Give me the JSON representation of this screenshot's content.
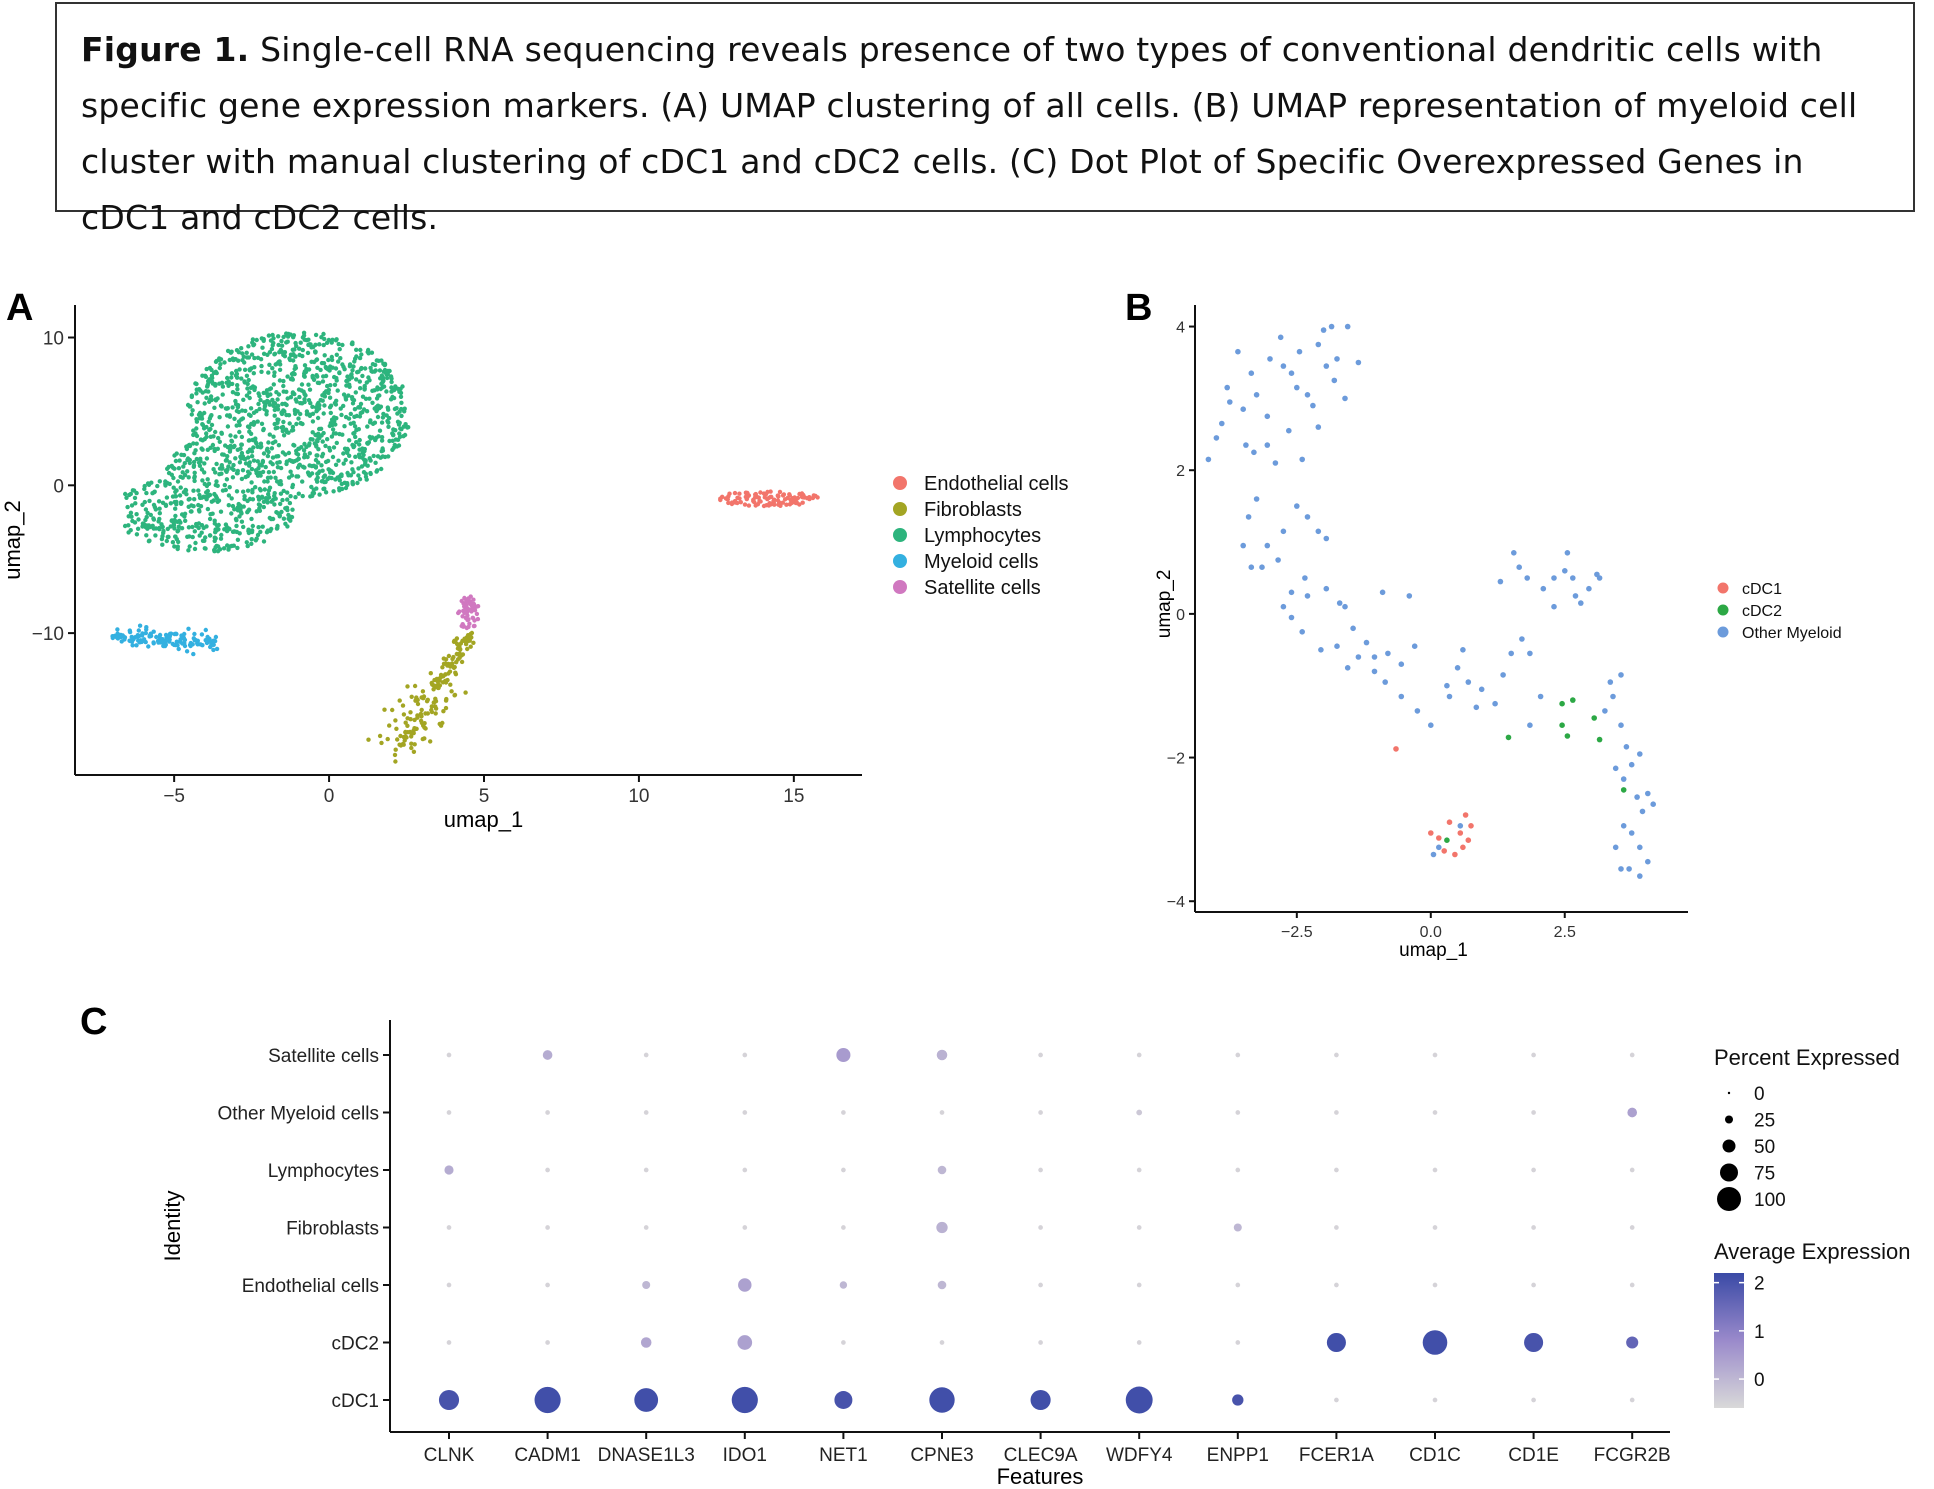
{
  "caption": {
    "label": "Figure 1.",
    "text": "Single-cell RNA sequencing reveals presence of two types of conventional dendritic cells with specific gene expression markers. (A) UMAP clustering of all cells. (B) UMAP representation of myeloid cell cluster with manual clustering of cDC1 and cDC2 cells. (C) Dot Plot of Specific Overexpressed Genes in cDC1 and cDC2 cells."
  },
  "panels": {
    "a": {
      "letter": "A"
    },
    "b": {
      "letter": "B"
    },
    "c": {
      "letter": "C"
    }
  },
  "colors": {
    "endothelial": "#F2756B",
    "fibroblasts": "#A3A523",
    "lymphocytes": "#2DB47D",
    "myeloid": "#33B0E0",
    "satellite": "#D078C0",
    "cdc1": "#F2756B",
    "cdc2": "#2CA845",
    "other_myeloid": "#6C9BDB",
    "expr_low": "#D9D9D9",
    "expr_high": "#3A4AA6"
  },
  "chart_data": [
    {
      "panel": "A",
      "type": "scatter",
      "xlabel": "umap_1",
      "ylabel": "umap_2",
      "xlim": [
        -8.2,
        17.2
      ],
      "ylim": [
        -19.6,
        12.2
      ],
      "xticks": [
        -5,
        0,
        5,
        10,
        15
      ],
      "xtick_labels": [
        "−5",
        "0",
        "5",
        "10",
        "15"
      ],
      "yticks": [
        10,
        0,
        -10
      ],
      "ytick_labels": [
        "10",
        "0",
        "−10"
      ],
      "legend": [
        "Endothelial cells",
        "Fibroblasts",
        "Lymphocytes",
        "Myeloid cells",
        "Satellite cells"
      ],
      "legend_colors": [
        "#F2756B",
        "#A3A523",
        "#2DB47D",
        "#33B0E0",
        "#D078C0"
      ],
      "clusters": [
        {
          "name": "Lymphocytes",
          "n": 1500,
          "shape": "blob",
          "x_range": [
            -6.6,
            2.6
          ],
          "y_range": [
            -4.8,
            10.6
          ]
        },
        {
          "name": "Endothelial cells",
          "n": 110,
          "shape": "ellipse",
          "center": [
            14.2,
            -0.9
          ],
          "radius": [
            1.6,
            0.55
          ]
        },
        {
          "name": "Myeloid cells",
          "n": 130,
          "shape": "band",
          "x_range": [
            -7.0,
            -3.6
          ],
          "y_range": [
            -11.0,
            -9.6
          ]
        },
        {
          "name": "Fibroblasts",
          "n": 190,
          "shape": "line",
          "from": [
            2.2,
            -17.8
          ],
          "to": [
            4.5,
            -10.2
          ]
        },
        {
          "name": "Satellite cells",
          "n": 60,
          "shape": "ellipse",
          "center": [
            4.5,
            -8.7
          ],
          "radius": [
            0.35,
            1.2
          ]
        }
      ]
    },
    {
      "panel": "B",
      "type": "scatter",
      "xlabel": "umap_1",
      "ylabel": "umap_2",
      "xlim": [
        -4.4,
        4.8
      ],
      "ylim": [
        -4.15,
        4.3
      ],
      "xticks": [
        -2.5,
        0.0,
        2.5
      ],
      "xtick_labels": [
        "−2.5",
        "0.0",
        "2.5"
      ],
      "yticks": [
        4,
        2,
        0,
        -2,
        -4
      ],
      "ytick_labels": [
        "4",
        "2",
        "0",
        "−2",
        "−4"
      ],
      "legend": [
        "cDC1",
        "cDC2",
        "Other Myeloid"
      ],
      "legend_colors": [
        "#F2756B",
        "#2CA845",
        "#6C9BDB"
      ],
      "series": [
        {
          "name": "cDC1",
          "points": [
            [
              -0.65,
              -1.88
            ],
            [
              0.0,
              -3.05
            ],
            [
              0.15,
              -3.12
            ],
            [
              0.25,
              -3.3
            ],
            [
              0.45,
              -3.35
            ],
            [
              0.55,
              -3.05
            ],
            [
              0.6,
              -3.25
            ],
            [
              0.65,
              -2.8
            ],
            [
              0.75,
              -2.95
            ],
            [
              0.7,
              -3.15
            ],
            [
              0.35,
              -2.9
            ]
          ]
        },
        {
          "name": "cDC2",
          "points": [
            [
              0.3,
              -3.15
            ],
            [
              1.45,
              -1.72
            ],
            [
              2.45,
              -1.25
            ],
            [
              2.65,
              -1.2
            ],
            [
              2.45,
              -1.55
            ],
            [
              2.55,
              -1.7
            ],
            [
              3.05,
              -1.45
            ],
            [
              3.15,
              -1.75
            ],
            [
              3.6,
              -2.45
            ]
          ]
        },
        {
          "name": "Other Myeloid",
          "points": [
            [
              -4.15,
              2.15
            ],
            [
              -4.0,
              2.45
            ],
            [
              -3.9,
              2.65
            ],
            [
              -3.8,
              3.15
            ],
            [
              -3.75,
              2.95
            ],
            [
              -3.6,
              3.65
            ],
            [
              -3.5,
              2.85
            ],
            [
              -3.45,
              2.35
            ],
            [
              -3.35,
              3.35
            ],
            [
              -3.3,
              2.25
            ],
            [
              -3.25,
              3.05
            ],
            [
              -3.05,
              2.75
            ],
            [
              -3.0,
              3.55
            ],
            [
              -2.8,
              3.85
            ],
            [
              -2.75,
              3.45
            ],
            [
              -2.6,
              3.35
            ],
            [
              -2.5,
              3.15
            ],
            [
              -2.45,
              3.65
            ],
            [
              -2.3,
              3.05
            ],
            [
              -2.1,
              3.75
            ],
            [
              -2.0,
              3.95
            ],
            [
              -1.95,
              3.45
            ],
            [
              -1.85,
              4.0
            ],
            [
              -1.8,
              3.25
            ],
            [
              -1.75,
              3.55
            ],
            [
              -1.6,
              3.0
            ],
            [
              -1.55,
              4.0
            ],
            [
              -1.35,
              3.5
            ],
            [
              -2.1,
              2.6
            ],
            [
              -2.2,
              2.9
            ],
            [
              -2.4,
              2.15
            ],
            [
              -2.65,
              2.55
            ],
            [
              -2.9,
              2.1
            ],
            [
              -3.05,
              2.35
            ],
            [
              -3.25,
              1.6
            ],
            [
              -3.4,
              1.35
            ],
            [
              -3.5,
              0.95
            ],
            [
              -3.35,
              0.65
            ],
            [
              -3.15,
              0.65
            ],
            [
              -3.05,
              0.95
            ],
            [
              -2.85,
              0.75
            ],
            [
              -2.75,
              1.15
            ],
            [
              -2.5,
              1.5
            ],
            [
              -2.3,
              1.35
            ],
            [
              -2.1,
              1.15
            ],
            [
              -1.95,
              1.05
            ],
            [
              -2.35,
              0.5
            ],
            [
              -2.6,
              0.3
            ],
            [
              -2.75,
              0.1
            ],
            [
              -2.3,
              0.25
            ],
            [
              -1.95,
              0.35
            ],
            [
              -1.7,
              0.15
            ],
            [
              -1.6,
              0.1
            ],
            [
              -1.45,
              -0.2
            ],
            [
              -1.2,
              -0.4
            ],
            [
              -1.05,
              -0.6
            ],
            [
              -0.8,
              -0.55
            ],
            [
              -0.55,
              -0.7
            ],
            [
              -0.3,
              -0.45
            ],
            [
              -0.25,
              -1.35
            ],
            [
              -0.55,
              -1.15
            ],
            [
              -0.85,
              -0.95
            ],
            [
              -1.05,
              -0.8
            ],
            [
              -1.35,
              -0.6
            ],
            [
              -1.55,
              -0.75
            ],
            [
              -1.75,
              -0.45
            ],
            [
              -2.05,
              -0.5
            ],
            [
              -2.4,
              -0.25
            ],
            [
              -2.6,
              -0.05
            ],
            [
              -0.9,
              0.3
            ],
            [
              -0.4,
              0.25
            ],
            [
              0.0,
              -1.55
            ],
            [
              0.3,
              -1.0
            ],
            [
              0.35,
              -1.15
            ],
            [
              0.5,
              -0.75
            ],
            [
              0.6,
              -0.5
            ],
            [
              0.7,
              -0.95
            ],
            [
              0.85,
              -1.3
            ],
            [
              0.95,
              -1.05
            ],
            [
              1.2,
              -1.25
            ],
            [
              1.35,
              -0.85
            ],
            [
              1.5,
              -0.55
            ],
            [
              1.7,
              -0.35
            ],
            [
              1.85,
              -0.55
            ],
            [
              1.3,
              0.45
            ],
            [
              1.55,
              0.85
            ],
            [
              1.65,
              0.65
            ],
            [
              1.8,
              0.5
            ],
            [
              2.1,
              0.35
            ],
            [
              2.3,
              0.5
            ],
            [
              2.5,
              0.6
            ],
            [
              2.65,
              0.5
            ],
            [
              2.7,
              0.25
            ],
            [
              2.8,
              0.15
            ],
            [
              2.95,
              0.35
            ],
            [
              3.1,
              0.55
            ],
            [
              3.15,
              0.5
            ],
            [
              2.55,
              0.85
            ],
            [
              2.3,
              0.1
            ],
            [
              1.85,
              -1.55
            ],
            [
              2.05,
              -1.15
            ],
            [
              3.35,
              -0.95
            ],
            [
              3.55,
              -0.85
            ],
            [
              3.4,
              -1.15
            ],
            [
              3.25,
              -1.35
            ],
            [
              3.55,
              -1.55
            ],
            [
              3.65,
              -1.85
            ],
            [
              3.45,
              -2.15
            ],
            [
              3.6,
              -2.3
            ],
            [
              3.75,
              -2.1
            ],
            [
              3.9,
              -1.95
            ],
            [
              3.85,
              -2.55
            ],
            [
              3.95,
              -2.75
            ],
            [
              4.05,
              -2.5
            ],
            [
              4.15,
              -2.65
            ],
            [
              3.75,
              -3.05
            ],
            [
              3.9,
              -3.25
            ],
            [
              3.7,
              -3.55
            ],
            [
              3.9,
              -3.65
            ],
            [
              4.05,
              -3.45
            ],
            [
              3.55,
              -3.55
            ],
            [
              3.45,
              -3.25
            ],
            [
              3.6,
              -2.95
            ],
            [
              0.05,
              -3.35
            ],
            [
              0.15,
              -3.25
            ],
            [
              0.55,
              -2.95
            ]
          ]
        }
      ]
    },
    {
      "panel": "C",
      "type": "scatter",
      "subtype": "dot-plot",
      "xlabel": "Features",
      "ylabel": "Identity",
      "features": [
        "CLNK",
        "CADM1",
        "DNASE1L3",
        "IDO1",
        "NET1",
        "CPNE3",
        "CLEC9A",
        "WDFY4",
        "ENPP1",
        "FCER1A",
        "CD1C",
        "CD1E",
        "FCGR2B"
      ],
      "identities": [
        "Satellite cells",
        "Other Myeloid cells",
        "Lymphocytes",
        "Fibroblasts",
        "Endothelial cells",
        "cDC2",
        "cDC1"
      ],
      "size_legend": {
        "title": "Percent Expressed",
        "breaks": [
          "0",
          "25",
          "50",
          "75",
          "100"
        ]
      },
      "color_legend": {
        "title": "Average Expression",
        "breaks": [
          "2",
          "1",
          "0"
        ],
        "range": [
          -0.6,
          2.2
        ]
      },
      "dots": [
        {
          "identity": "Satellite cells",
          "pct": [
            1,
            8,
            1,
            1,
            20,
            10,
            1,
            1,
            1,
            1,
            1,
            1,
            1
          ],
          "avg": [
            -0.5,
            0.2,
            -0.5,
            -0.5,
            0.5,
            0.1,
            -0.5,
            -0.5,
            -0.5,
            -0.5,
            -0.5,
            -0.5,
            -0.5
          ]
        },
        {
          "identity": "Other Myeloid cells",
          "pct": [
            1,
            1,
            1,
            1,
            1,
            1,
            1,
            2,
            1,
            1,
            1,
            1,
            8
          ],
          "avg": [
            -0.5,
            -0.5,
            -0.5,
            -0.5,
            -0.5,
            -0.5,
            -0.5,
            -0.3,
            -0.5,
            -0.5,
            -0.5,
            -0.5,
            0.4
          ]
        },
        {
          "identity": "Lymphocytes",
          "pct": [
            7,
            1,
            1,
            1,
            1,
            6,
            1,
            1,
            1,
            1,
            1,
            1,
            1
          ],
          "avg": [
            0.2,
            -0.5,
            -0.5,
            -0.5,
            -0.5,
            0.0,
            -0.5,
            -0.5,
            -0.5,
            -0.5,
            -0.5,
            -0.5,
            -0.5
          ]
        },
        {
          "identity": "Fibroblasts",
          "pct": [
            1,
            1,
            1,
            1,
            1,
            12,
            1,
            1,
            5,
            1,
            1,
            1,
            1
          ],
          "avg": [
            -0.5,
            -0.5,
            -0.5,
            -0.5,
            -0.5,
            0.1,
            -0.5,
            -0.5,
            0.0,
            -0.5,
            -0.5,
            -0.5,
            -0.5
          ]
        },
        {
          "identity": "Endothelial cells",
          "pct": [
            1,
            1,
            5,
            18,
            4,
            6,
            1,
            1,
            1,
            1,
            1,
            1,
            1
          ],
          "avg": [
            -0.5,
            -0.5,
            0.0,
            0.4,
            0.0,
            0.0,
            -0.5,
            -0.5,
            -0.5,
            -0.5,
            -0.5,
            -0.5,
            -0.5
          ]
        },
        {
          "identity": "cDC2",
          "pct": [
            1,
            1,
            10,
            22,
            1,
            1,
            1,
            1,
            1,
            40,
            70,
            40,
            14
          ],
          "avg": [
            -0.5,
            -0.5,
            0.3,
            0.4,
            -0.5,
            -0.5,
            -0.5,
            -0.5,
            -0.5,
            2.1,
            2.1,
            2.0,
            1.6
          ]
        },
        {
          "identity": "cDC1",
          "pct": [
            45,
            80,
            65,
            80,
            35,
            75,
            45,
            85,
            12,
            1,
            1,
            1,
            1
          ],
          "avg": [
            2.0,
            2.1,
            2.1,
            2.1,
            2.0,
            2.1,
            2.1,
            2.1,
            2.0,
            -0.5,
            -0.5,
            -0.5,
            -0.5
          ]
        }
      ]
    }
  ]
}
